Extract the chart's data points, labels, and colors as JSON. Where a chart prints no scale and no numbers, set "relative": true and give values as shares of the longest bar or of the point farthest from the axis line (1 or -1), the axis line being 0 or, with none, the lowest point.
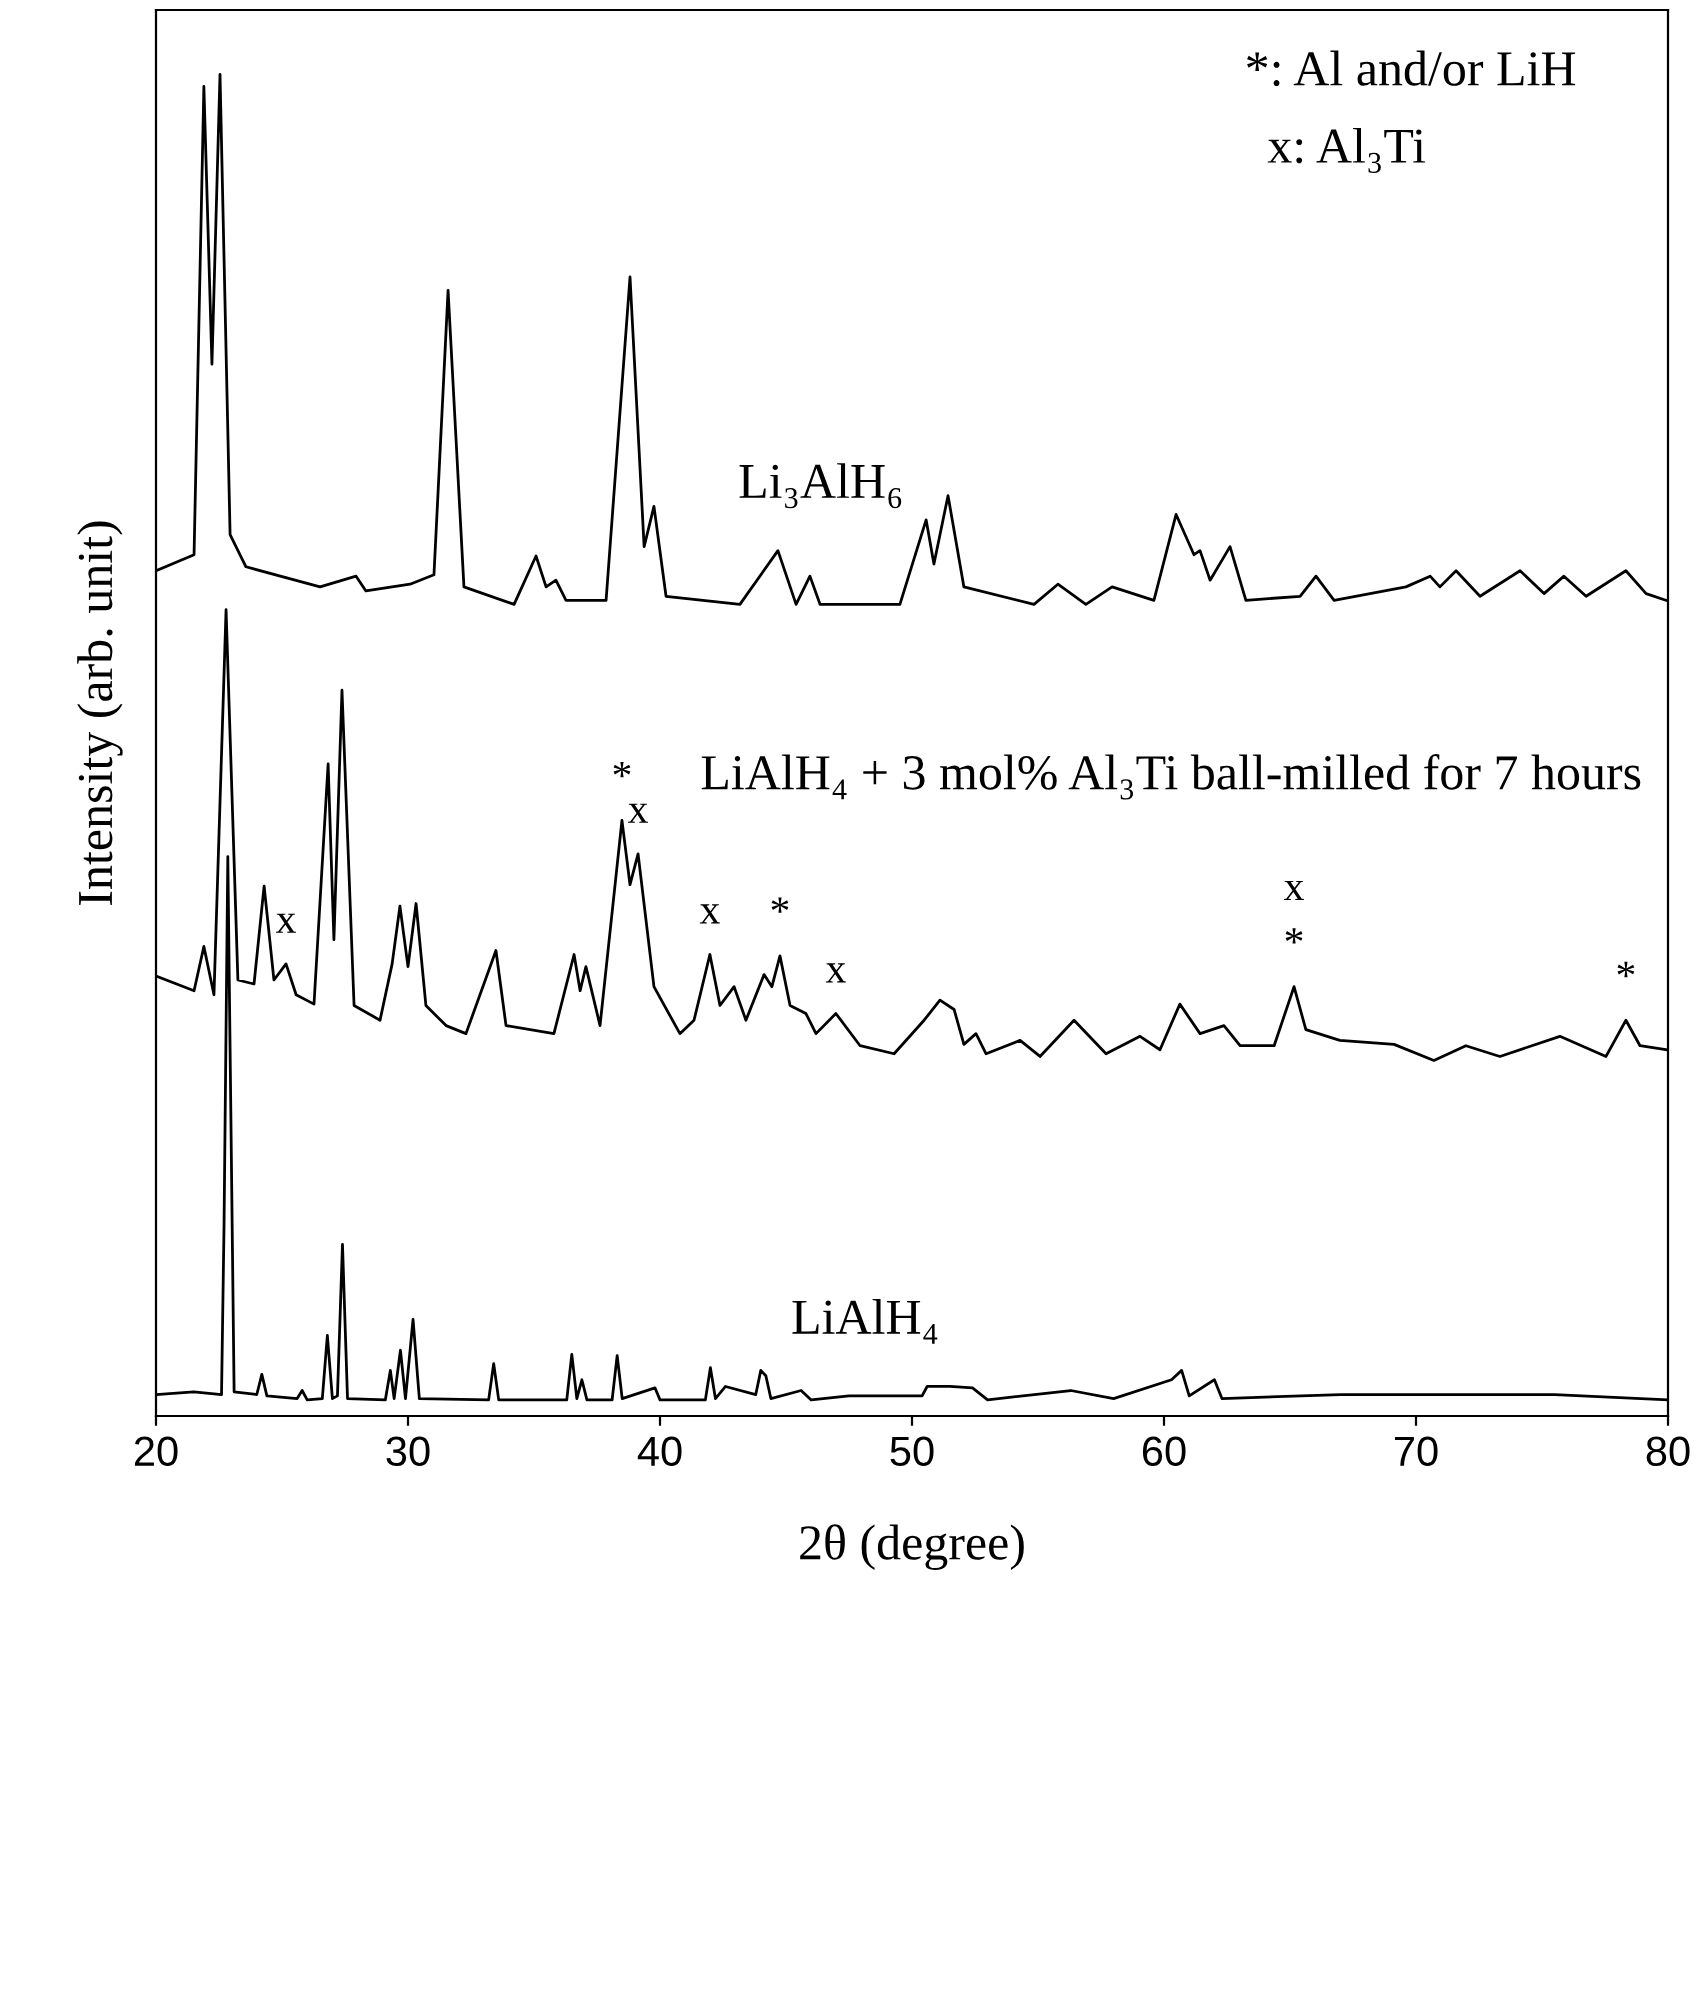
{
  "chart_data": {
    "type": "line",
    "relative": true,
    "xlabel": "2θ (degree)",
    "ylabel": "Intensity (arb. unit)",
    "xlim": [
      20,
      80
    ],
    "xticks": [
      20,
      30,
      40,
      50,
      60,
      70,
      80
    ],
    "tick_labels": "x",
    "grid": false,
    "legend": false,
    "marker": "none",
    "line_style": "solid",
    "series": [
      {
        "name": "Li₃AlH₆",
        "color": "#000000",
        "x": [
          20.0,
          21.51,
          21.9,
          22.22,
          22.54,
          22.94,
          23.57,
          26.51,
          27.94,
          28.33,
          30.08,
          31.03,
          31.59,
          32.22,
          34.21,
          35.08,
          35.48,
          35.87,
          36.27,
          37.86,
          38.81,
          39.37,
          39.76,
          40.24,
          43.17,
          44.68,
          45.4,
          45.95,
          46.35,
          49.52,
          50.56,
          50.87,
          51.43,
          52.06,
          54.84,
          55.79,
          56.9,
          57.94,
          59.6,
          60.48,
          61.19,
          61.43,
          61.83,
          62.62,
          63.25,
          65.4,
          66.03,
          66.75,
          69.6,
          70.56,
          70.95,
          71.59,
          72.54,
          74.13,
          75.08,
          75.87,
          76.75,
          78.33,
          79.13,
          79.92
        ],
        "values": [
          0.63,
          0.642,
          0.991,
          0.784,
          1.0,
          0.657,
          0.633,
          0.618,
          0.626,
          0.615,
          0.62,
          0.627,
          0.839,
          0.618,
          0.605,
          0.641,
          0.618,
          0.623,
          0.608,
          0.608,
          0.849,
          0.648,
          0.678,
          0.611,
          0.605,
          0.645,
          0.605,
          0.626,
          0.605,
          0.605,
          0.668,
          0.635,
          0.686,
          0.618,
          0.605,
          0.62,
          0.605,
          0.618,
          0.608,
          0.672,
          0.642,
          0.645,
          0.623,
          0.648,
          0.608,
          0.611,
          0.626,
          0.608,
          0.618,
          0.626,
          0.618,
          0.63,
          0.611,
          0.63,
          0.613,
          0.626,
          0.611,
          0.63,
          0.613,
          0.608
        ]
      },
      {
        "name": "LiAlH₄ + 3 mol% Al₃Ti ball-milled for 7 hours",
        "color": "#000000",
        "x": [
          20.0,
          21.51,
          21.9,
          22.3,
          22.78,
          23.25,
          23.89,
          24.29,
          24.68,
          25.16,
          25.56,
          26.27,
          26.83,
          27.06,
          27.38,
          27.86,
          28.89,
          29.37,
          29.68,
          30.0,
          30.32,
          30.71,
          31.51,
          32.3,
          33.49,
          33.89,
          35.79,
          36.59,
          36.83,
          37.06,
          37.62,
          38.49,
          38.81,
          39.13,
          39.76,
          40.79,
          41.35,
          41.98,
          42.38,
          42.94,
          43.41,
          44.13,
          44.44,
          44.76,
          45.16,
          45.79,
          46.19,
          46.98,
          47.94,
          49.29,
          50.48,
          51.11,
          51.67,
          52.06,
          52.54,
          52.94,
          54.29,
          55.08,
          56.43,
          57.7,
          59.05,
          59.84,
          60.63,
          61.43,
          62.38,
          63.02,
          64.37,
          65.16,
          65.63,
          66.98,
          69.13,
          70.71,
          71.98,
          73.33,
          75.71,
          77.54,
          78.33,
          78.89,
          79.92
        ],
        "values": [
          0.328,
          0.317,
          0.35,
          0.314,
          0.601,
          0.325,
          0.322,
          0.395,
          0.325,
          0.337,
          0.314,
          0.307,
          0.486,
          0.355,
          0.541,
          0.306,
          0.295,
          0.337,
          0.38,
          0.335,
          0.382,
          0.306,
          0.291,
          0.285,
          0.347,
          0.291,
          0.285,
          0.344,
          0.317,
          0.335,
          0.291,
          0.444,
          0.396,
          0.419,
          0.32,
          0.285,
          0.295,
          0.344,
          0.306,
          0.32,
          0.295,
          0.329,
          0.32,
          0.343,
          0.306,
          0.3,
          0.285,
          0.3,
          0.276,
          0.27,
          0.295,
          0.31,
          0.303,
          0.277,
          0.285,
          0.27,
          0.28,
          0.268,
          0.295,
          0.27,
          0.283,
          0.273,
          0.307,
          0.285,
          0.291,
          0.276,
          0.276,
          0.32,
          0.288,
          0.28,
          0.277,
          0.265,
          0.276,
          0.268,
          0.283,
          0.268,
          0.295,
          0.276,
          0.273
        ]
      },
      {
        "name": "LiAlH₄",
        "color": "#000000",
        "x": [
          20.0,
          21.5,
          22.6,
          22.7,
          22.85,
          23.1,
          24.0,
          24.2,
          24.4,
          25.6,
          25.8,
          26.0,
          26.6,
          26.8,
          27.0,
          27.2,
          27.4,
          27.6,
          29.1,
          29.3,
          29.45,
          29.7,
          29.9,
          30.2,
          30.45,
          33.2,
          33.4,
          33.6,
          36.3,
          36.5,
          36.7,
          36.9,
          37.1,
          38.1,
          38.3,
          38.5,
          39.8,
          40.0,
          41.8,
          42.0,
          42.2,
          42.6,
          43.8,
          44.0,
          44.2,
          44.4,
          45.6,
          46.0,
          47.5,
          50.4,
          50.6,
          51.0,
          51.5,
          52.4,
          53.0,
          56.3,
          58.0,
          60.3,
          60.7,
          61.0,
          62.0,
          62.3,
          67.0,
          69.5,
          75.5,
          80.0
        ],
        "values": [
          0.016,
          0.018,
          0.016,
          0.142,
          0.417,
          0.018,
          0.016,
          0.031,
          0.015,
          0.013,
          0.019,
          0.012,
          0.013,
          0.06,
          0.013,
          0.015,
          0.128,
          0.013,
          0.012,
          0.034,
          0.013,
          0.049,
          0.013,
          0.072,
          0.013,
          0.012,
          0.039,
          0.012,
          0.012,
          0.046,
          0.013,
          0.027,
          0.012,
          0.012,
          0.045,
          0.013,
          0.021,
          0.012,
          0.012,
          0.036,
          0.013,
          0.022,
          0.016,
          0.034,
          0.03,
          0.013,
          0.019,
          0.012,
          0.015,
          0.015,
          0.022,
          0.022,
          0.022,
          0.021,
          0.012,
          0.019,
          0.013,
          0.027,
          0.034,
          0.015,
          0.027,
          0.013,
          0.016,
          0.016,
          0.016,
          0.012
        ]
      }
    ],
    "annotations": [
      "*: Al and/or LiH",
      "x: Al₃Ti",
      {
        "text": "x",
        "x": 25.16,
        "y": 0.337
      },
      {
        "text": "*",
        "x": 38.49,
        "y": 0.444
      },
      {
        "text": "x",
        "x": 39.13,
        "y": 0.419
      },
      {
        "text": "x",
        "x": 41.98,
        "y": 0.344
      },
      {
        "text": "*",
        "x": 44.76,
        "y": 0.343
      },
      {
        "text": "x",
        "x": 46.98,
        "y": 0.3
      },
      {
        "text": "*",
        "x": 65.16,
        "y": 0.32
      },
      {
        "text": "x",
        "x": 65.16,
        "y": 0.32
      },
      {
        "text": "*",
        "x": 78.33,
        "y": 0.295
      }
    ]
  }
}
